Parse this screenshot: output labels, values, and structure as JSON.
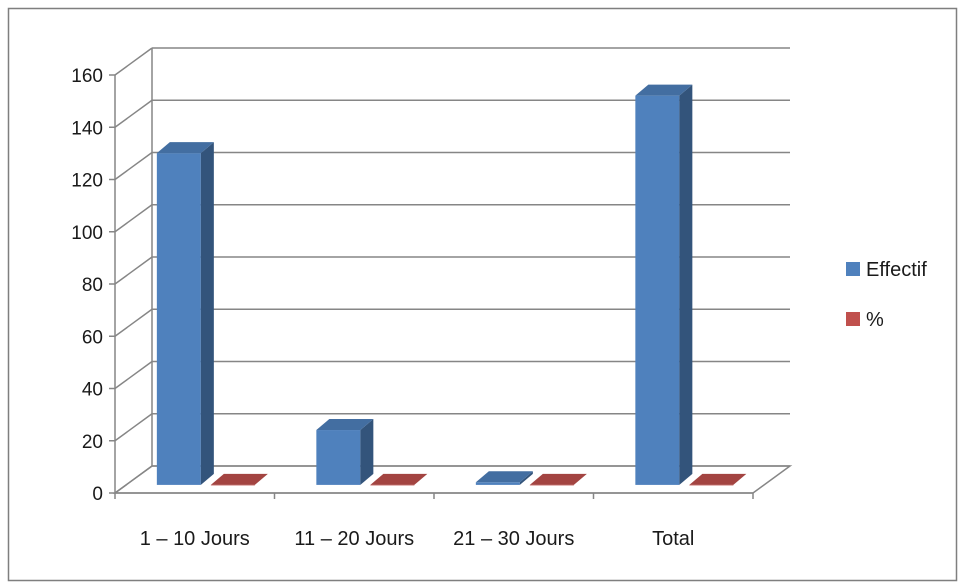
{
  "chart_data": {
    "type": "bar",
    "style": "3d-clustered-column",
    "categories": [
      "1 – 10 Jours",
      "11 – 20 Jours",
      "21 – 30 Jours",
      "Total"
    ],
    "series": [
      {
        "name": "Effectif",
        "color": "#4f81bd",
        "values": [
          127,
          21,
          1,
          149
        ]
      },
      {
        "name": "%",
        "color": "#c0504d",
        "values": [
          0,
          0,
          0,
          0
        ]
      }
    ],
    "title": "",
    "xlabel": "",
    "ylabel": "",
    "ylim": [
      0,
      160
    ],
    "yticks": [
      0,
      20,
      40,
      60,
      80,
      100,
      120,
      140,
      160
    ],
    "grid": true,
    "legend": "right"
  }
}
